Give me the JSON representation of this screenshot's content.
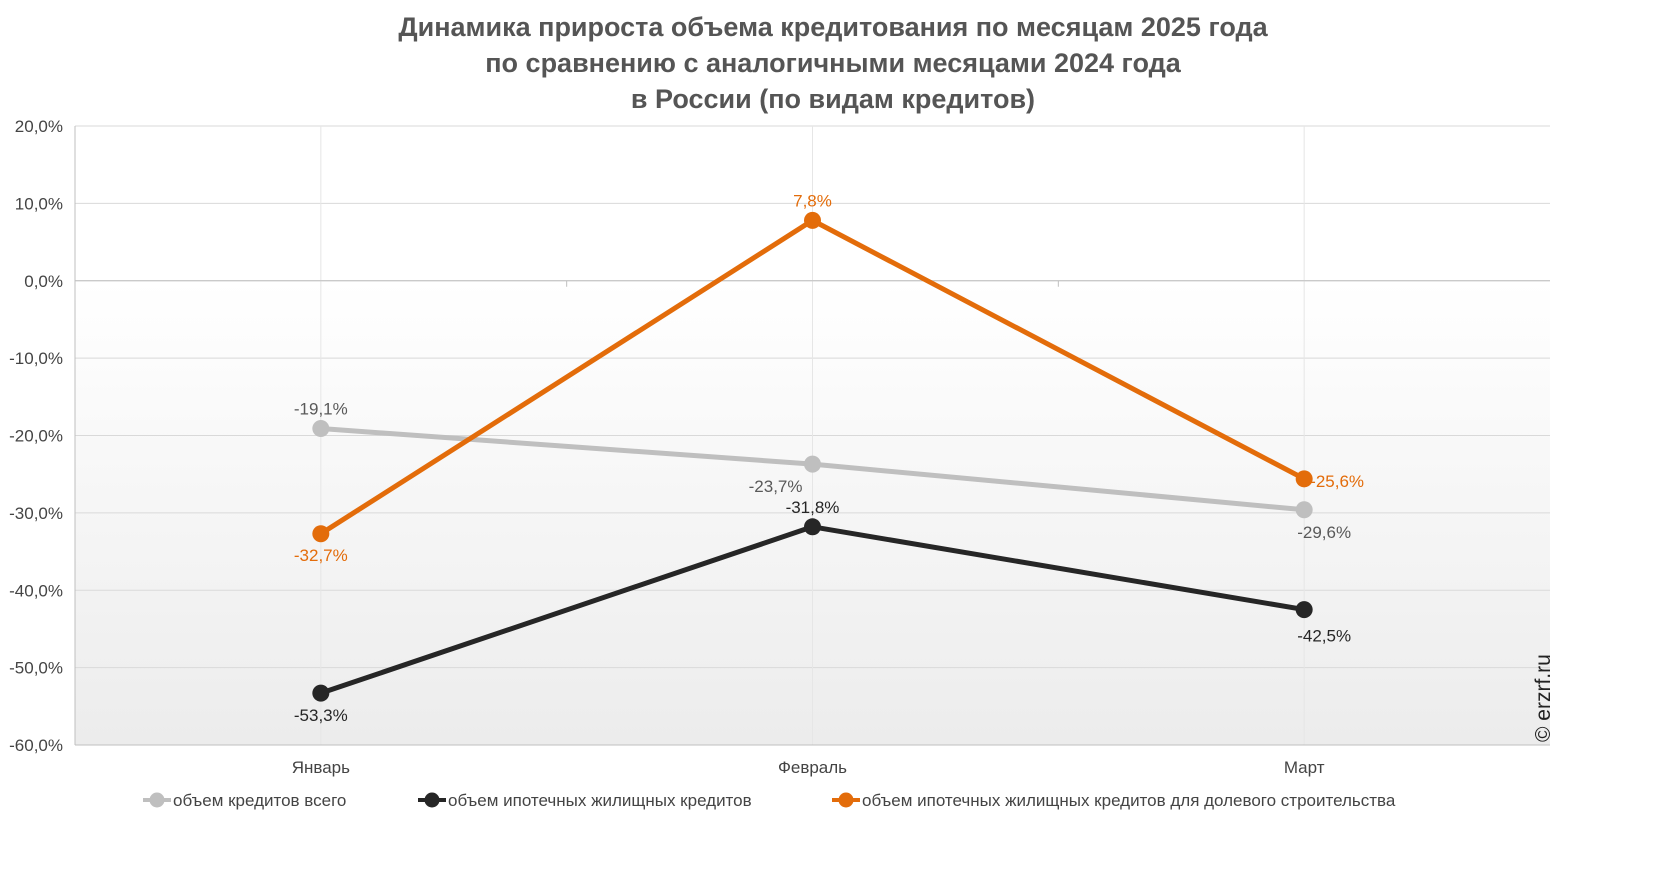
{
  "chart_data": {
    "type": "line",
    "title_lines": [
      "Динамика прироста объема кредитования по месяцам 2025 года",
      "по сравнению с аналогичными месяцами 2024 года",
      "в России (по видам кредитов)"
    ],
    "categories": [
      "Январь",
      "Февраль",
      "Март"
    ],
    "ylim": [
      -60,
      20
    ],
    "yticks": [
      20,
      10,
      0,
      -10,
      -20,
      -30,
      -40,
      -50,
      -60
    ],
    "ytick_labels": [
      "20,0%",
      "10,0%",
      "0,0%",
      "-10,0%",
      "-20,0%",
      "-30,0%",
      "-40,0%",
      "-50,0%",
      "-60,0%"
    ],
    "grid": true,
    "legend_position": "bottom",
    "series": [
      {
        "name": "объем кредитов всего",
        "color": "#bfbfbf",
        "label_color": "#595959",
        "values": [
          -19.1,
          -23.7,
          -29.6
        ],
        "labels": [
          "-19,1%",
          "-23,7%",
          "-29,6%"
        ]
      },
      {
        "name": "объем ипотечных жилищных кредитов",
        "color": "#262626",
        "label_color": "#262626",
        "values": [
          -53.3,
          -31.8,
          -42.5
        ],
        "labels": [
          "-53,3%",
          "-31,8%",
          "-42,5%"
        ]
      },
      {
        "name": "объем ипотечных жилищных кредитов для долевого строительства",
        "color": "#e36c0a",
        "label_color": "#e36c0a",
        "values": [
          -32.7,
          7.8,
          -25.6
        ],
        "labels": [
          "-32,7%",
          "7,8%",
          "-25,6%"
        ]
      }
    ],
    "watermark": "© erzrf.ru"
  }
}
